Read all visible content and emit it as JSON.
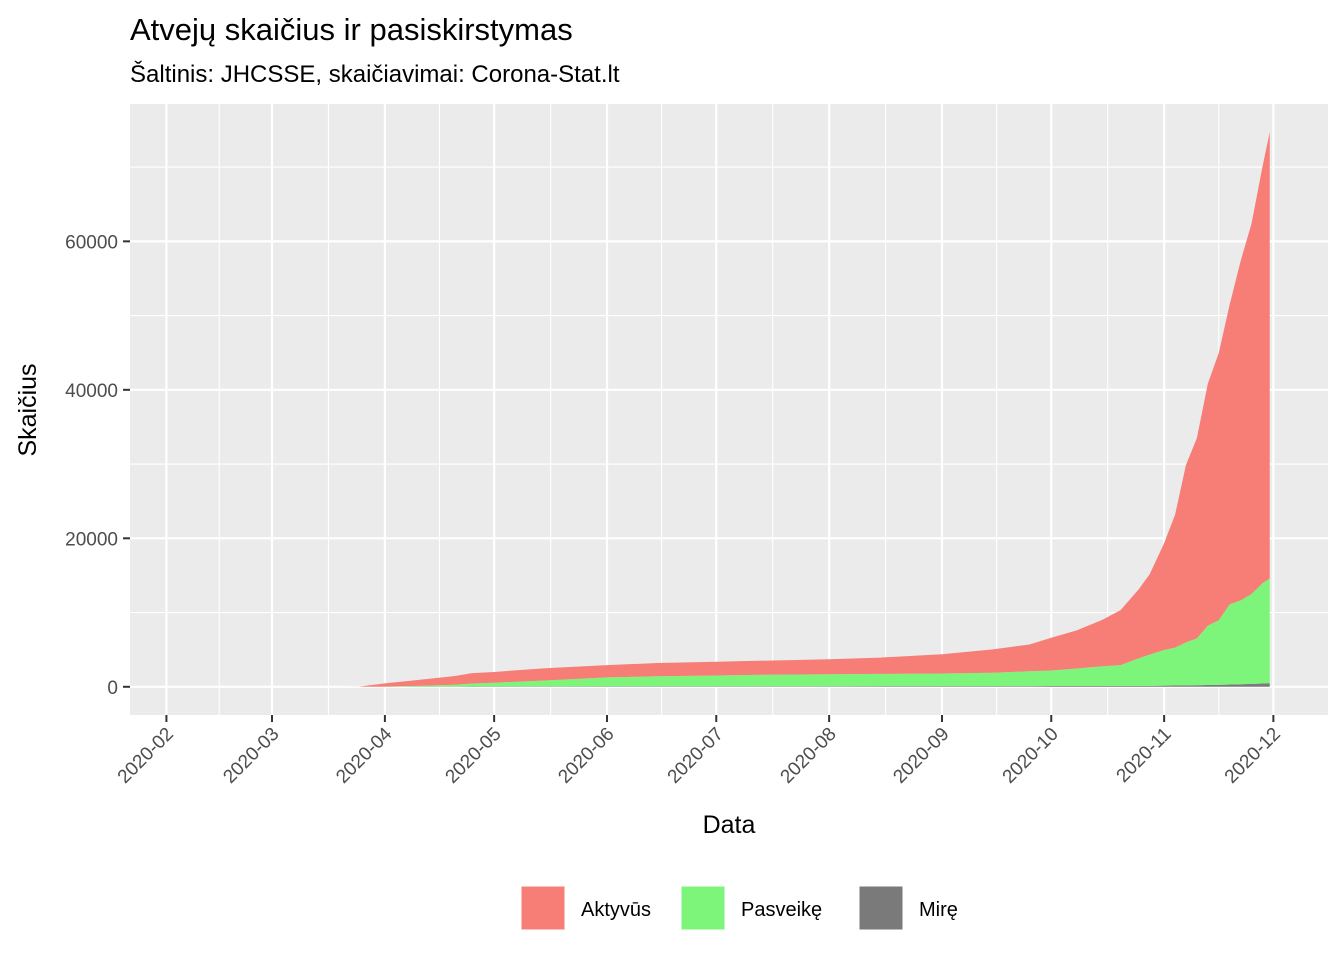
{
  "chart_data": {
    "type": "area",
    "stacked": true,
    "title": "Atvejų skaičius ir pasiskirstymas",
    "subtitle": "Šaltinis: JHCSSE, skaičiavimai: Corona-Stat.lt",
    "xlabel": "Data",
    "ylabel": "Skaičius",
    "x_ticks": [
      "2020-02",
      "2020-03",
      "2020-04",
      "2020-05",
      "2020-06",
      "2020-07",
      "2020-08",
      "2020-09",
      "2020-10",
      "2020-11",
      "2020-12"
    ],
    "y_ticks": [
      0,
      20000,
      40000,
      60000
    ],
    "xlim": [
      "2020-01-22",
      "2020-12-16"
    ],
    "ylim": [
      -3800,
      78500
    ],
    "grid": true,
    "legend_position": "bottom",
    "x": [
      "2020-01-22",
      "2020-03-20",
      "2020-03-25",
      "2020-04-01",
      "2020-04-10",
      "2020-04-20",
      "2020-04-25",
      "2020-05-01",
      "2020-05-15",
      "2020-06-01",
      "2020-06-15",
      "2020-07-01",
      "2020-07-15",
      "2020-08-01",
      "2020-08-15",
      "2020-09-01",
      "2020-09-15",
      "2020-09-25",
      "2020-10-01",
      "2020-10-08",
      "2020-10-15",
      "2020-10-20",
      "2020-10-25",
      "2020-10-28",
      "2020-11-01",
      "2020-11-04",
      "2020-11-07",
      "2020-11-10",
      "2020-11-13",
      "2020-11-16",
      "2020-11-19",
      "2020-11-22",
      "2020-11-25",
      "2020-11-28",
      "2020-11-30"
    ],
    "series": [
      {
        "name": "Mirę",
        "color": "#7a7a7a",
        "values": [
          0,
          0,
          0,
          5,
          15,
          30,
          40,
          50,
          55,
          70,
          75,
          78,
          80,
          81,
          82,
          86,
          90,
          95,
          100,
          105,
          110,
          115,
          125,
          130,
          150,
          170,
          190,
          215,
          240,
          265,
          300,
          340,
          390,
          440,
          490
        ]
      },
      {
        "name": "Pasveikę",
        "color": "#7cf57a",
        "values": [
          0,
          0,
          0,
          10,
          100,
          250,
          400,
          500,
          800,
          1200,
          1350,
          1450,
          1550,
          1600,
          1650,
          1700,
          1800,
          2000,
          2100,
          2350,
          2650,
          2800,
          3700,
          4200,
          4800,
          5100,
          5800,
          6300,
          8000,
          8700,
          10800,
          11300,
          12100,
          13500,
          14100
        ]
      },
      {
        "name": "Aktyvūs",
        "color": "#f77d77",
        "values": [
          0,
          0,
          20,
          450,
          800,
          1150,
          1400,
          1450,
          1650,
          1650,
          1780,
          1850,
          1900,
          2020,
          2200,
          2600,
          3150,
          3600,
          4400,
          5150,
          6250,
          7400,
          9300,
          10800,
          14400,
          17900,
          23900,
          27000,
          32600,
          36000,
          40400,
          45700,
          49900,
          56100,
          60100
        ]
      }
    ]
  },
  "legend": {
    "items": [
      {
        "label": "Aktyvūs",
        "color": "#f77d77"
      },
      {
        "label": "Pasveikę",
        "color": "#7cf57a"
      },
      {
        "label": "Mirę",
        "color": "#7a7a7a"
      }
    ]
  }
}
